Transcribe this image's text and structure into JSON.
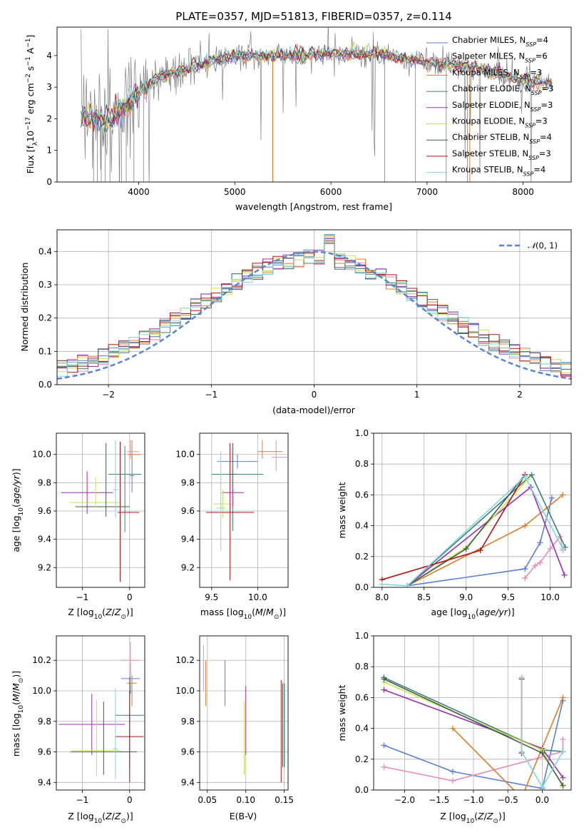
{
  "title": "PLATE=0357, MJD=51813, FIBERID=0357, z=0.114",
  "models": [
    {
      "name": "Chabrier MILES, N",
      "nssp": "4",
      "color": "#5b7fd6"
    },
    {
      "name": "Salpeter MILES, N",
      "nssp": "6",
      "color": "#e78cb8"
    },
    {
      "name": "Kroupa MILES, N",
      "nssp": "3",
      "color": "#e07b2a"
    },
    {
      "name": "Chabrier ELODIE, N",
      "nssp": "3",
      "color": "#3f7f78"
    },
    {
      "name": "Salpeter ELODIE, N",
      "nssp": "3",
      "color": "#9b2fb1"
    },
    {
      "name": "Kroupa ELODIE, N",
      "nssp": "3",
      "color": "#c6e34a"
    },
    {
      "name": "Chabrier STELIB, N",
      "nssp": "4",
      "color": "#3d5a55"
    },
    {
      "name": "Salpeter STELIB, N",
      "nssp": "3",
      "color": "#b01515"
    },
    {
      "name": "Kroupa STELIB, N",
      "nssp": "4",
      "color": "#7ed8e0"
    }
  ],
  "colors": {
    "data": "#808080",
    "gauss": "#5b84d0",
    "grid": "#b0b0b0"
  },
  "chart_data": [
    {
      "id": "spectrum",
      "type": "line",
      "xlabel": "wavelength [Angstrom, rest frame]",
      "ylabel": "Flux [f",
      "xlim": [
        3150,
        8500
      ],
      "ylim": [
        0,
        4.9
      ],
      "xticks": [
        4000,
        5000,
        6000,
        7000,
        8000
      ],
      "yticks": [
        0,
        1,
        2,
        3,
        4
      ],
      "legend": "top-right",
      "continuum_x": [
        3400,
        3500,
        3700,
        4000,
        4200,
        4500,
        4800,
        5000,
        5500,
        6000,
        6500,
        7000,
        7500,
        8000,
        8300
      ],
      "continuum_y": [
        2.1,
        2.1,
        1.9,
        2.8,
        3.3,
        3.6,
        3.85,
        4.0,
        4.0,
        4.05,
        4.05,
        3.8,
        3.6,
        3.2,
        3.1
      ]
    },
    {
      "id": "residuals",
      "type": "line",
      "xlabel": "(data-model)/error",
      "ylabel": "Normed distribution",
      "xlim": [
        -2.5,
        2.5
      ],
      "ylim": [
        0,
        0.465
      ],
      "xticks": [
        -2,
        -1,
        0,
        1,
        2
      ],
      "yticks": [
        0,
        0.1,
        0.2,
        0.3,
        0.4
      ],
      "grid": true,
      "legend": "top-right",
      "gauss_label": "(0, 1)",
      "gauss_sigma": 1.0
    },
    {
      "id": "age_vs_z",
      "type": "scatter",
      "xlabel": "Z [log",
      "ylabel": "age  [log",
      "xlim": [
        -1.55,
        0.32
      ],
      "ylim": [
        9.06,
        10.15
      ],
      "xticks": [
        -1,
        0
      ],
      "yticks": [
        9.2,
        9.4,
        9.6,
        9.8,
        10.0
      ],
      "grid": true,
      "points": [
        {
          "x": 0.05,
          "y": 9.85,
          "xerr": [
            0.05,
            0.05
          ],
          "yerr": [
            0.12,
            0.15
          ]
        },
        {
          "x": 0.02,
          "y": 10.02,
          "xerr": [
            0.08,
            0.18
          ],
          "yerr": [
            0.05,
            0.08
          ]
        },
        {
          "x": 0.05,
          "y": 10.0,
          "xerr": [
            0.1,
            0.18
          ],
          "yerr": [
            0.05,
            0.1
          ]
        },
        {
          "x": -0.1,
          "y": 9.86,
          "xerr": [
            0.35,
            0.35
          ],
          "yerr": [
            0.41,
            0.2
          ]
        },
        {
          "x": -0.9,
          "y": 9.73,
          "xerr": [
            0.55,
            0.55
          ],
          "yerr": [
            0.15,
            0.15
          ]
        },
        {
          "x": -0.72,
          "y": 9.66,
          "xerr": [
            0.55,
            0.55
          ],
          "yerr": [
            0.02,
            0.18
          ]
        },
        {
          "x": -0.5,
          "y": 9.63,
          "xerr": [
            0.65,
            0.5
          ],
          "yerr": [
            0.07,
            0.45
          ]
        },
        {
          "x": -0.2,
          "y": 9.59,
          "xerr": [
            0.05,
            0.4
          ],
          "yerr": [
            0.49,
            0.5
          ]
        },
        {
          "x": -0.3,
          "y": 9.75,
          "xerr": [
            0.05,
            0.05
          ],
          "yerr": [
            0.2,
            0.35
          ]
        }
      ]
    },
    {
      "id": "age_vs_mass",
      "type": "scatter",
      "xlabel": "mass [log",
      "ylabel": "",
      "xlim": [
        9.37,
        10.33
      ],
      "ylim": [
        9.06,
        10.15
      ],
      "xticks": [
        9.5,
        10.0
      ],
      "yticks": [
        9.2,
        9.4,
        9.6,
        9.8,
        10.0
      ],
      "grid": true,
      "points": [
        {
          "x": 9.78,
          "y": 9.95,
          "xerr": [
            0.22,
            0.22
          ],
          "yerr": [
            0.05,
            0.05
          ]
        },
        {
          "x": 10.2,
          "y": 9.98,
          "xerr": [
            0.05,
            0.12
          ],
          "yerr": [
            0.1,
            0.12
          ]
        },
        {
          "x": 10.05,
          "y": 10.02,
          "xerr": [
            0.05,
            0.22
          ],
          "yerr": [
            0.05,
            0.08
          ]
        },
        {
          "x": 9.73,
          "y": 9.86,
          "xerr": [
            0.23,
            0.33
          ],
          "yerr": [
            0.4,
            0.22
          ]
        },
        {
          "x": 9.73,
          "y": 9.73,
          "xerr": [
            0.12,
            0.12
          ],
          "yerr": [
            0.1,
            0.1
          ]
        },
        {
          "x": 9.62,
          "y": 9.65,
          "xerr": [
            0.1,
            0.1
          ],
          "yerr": [
            0.1,
            0.1
          ]
        },
        {
          "x": 9.73,
          "y": 9.86,
          "xerr": [
            0.03,
            0.03
          ],
          "yerr": [
            0.1,
            0.22
          ]
        },
        {
          "x": 9.7,
          "y": 9.59,
          "xerr": [
            0.26,
            0.26
          ],
          "yerr": [
            0.48,
            0.49
          ]
        },
        {
          "x": 9.6,
          "y": 9.62,
          "xerr": [
            0.05,
            0.05
          ],
          "yerr": [
            0.3,
            0.4
          ]
        }
      ]
    },
    {
      "id": "weight_vs_age",
      "type": "line",
      "xlabel": "age  [log",
      "ylabel": "mass weight",
      "xlim": [
        7.9,
        10.25
      ],
      "ylim": [
        0,
        1.0
      ],
      "xticks": [
        8.0,
        8.5,
        9.0,
        9.5,
        10.0
      ],
      "yticks": [
        0.0,
        0.2,
        0.4,
        0.6,
        0.8,
        1.0
      ],
      "grid": true,
      "series": [
        {
          "x": [
            8.3,
            9.7,
            9.88,
            10.02
          ],
          "y": [
            0.01,
            0.12,
            0.29,
            0.58
          ]
        },
        {
          "x": [
            9.7,
            9.82,
            9.88,
            10.0,
            10.12,
            10.15
          ],
          "y": [
            0.06,
            0.14,
            0.16,
            0.25,
            0.33,
            0.24
          ]
        },
        {
          "x": [
            8.3,
            9.7,
            10.15
          ],
          "y": [
            0.01,
            0.4,
            0.6
          ]
        },
        {
          "x": [
            8.3,
            9.78,
            10.18
          ],
          "y": [
            0.01,
            0.73,
            0.26
          ]
        },
        {
          "x": [
            8.3,
            9.77,
            10.17
          ],
          "y": [
            0.01,
            0.65,
            0.08
          ]
        },
        {
          "x": [
            8.3,
            9.0,
            9.73
          ],
          "y": [
            0.01,
            0.26,
            0.7
          ]
        },
        {
          "x": [
            8.3,
            9.0,
            9.7
          ],
          "y": [
            0.01,
            0.25,
            0.73
          ]
        },
        {
          "x": [
            8.0,
            9.17,
            9.7
          ],
          "y": [
            0.05,
            0.24,
            0.73
          ]
        },
        {
          "x": [
            8.0,
            8.3,
            9.7,
            10.15
          ],
          "y": [
            0.02,
            0.01,
            0.72,
            0.25
          ]
        }
      ]
    },
    {
      "id": "mass_vs_z",
      "type": "scatter",
      "xlabel": "Z [log",
      "ylabel": "mass [log",
      "xlim": [
        -1.55,
        0.32
      ],
      "ylim": [
        9.35,
        10.36
      ],
      "xticks": [
        -1,
        0
      ],
      "yticks": [
        9.4,
        9.6,
        9.8,
        10.0,
        10.2
      ],
      "grid": true,
      "points": [
        {
          "x": 0.02,
          "y": 10.08,
          "xerr": [
            0.2,
            0.2
          ],
          "yerr": [
            0.1,
            0.1
          ]
        },
        {
          "x": 0.02,
          "y": 10.2,
          "xerr": [
            0.2,
            0.2
          ],
          "yerr": [
            0.15,
            0.12
          ]
        },
        {
          "x": 0.05,
          "y": 10.05,
          "xerr": [
            0.1,
            0.1
          ],
          "yerr": [
            0.15,
            0.05
          ]
        },
        {
          "x": 0.0,
          "y": 9.84,
          "xerr": [
            0.3,
            0.3
          ],
          "yerr": [
            0.35,
            0.25
          ]
        },
        {
          "x": -0.8,
          "y": 9.78,
          "xerr": [
            0.7,
            0.7
          ],
          "yerr": [
            0.2,
            0.2
          ]
        },
        {
          "x": -0.7,
          "y": 9.61,
          "xerr": [
            0.5,
            0.5
          ],
          "yerr": [
            0.17,
            0.33
          ]
        },
        {
          "x": -0.55,
          "y": 9.6,
          "xerr": [
            0.7,
            0.7
          ],
          "yerr": [
            0.15,
            0.33
          ]
        },
        {
          "x": 0.0,
          "y": 9.7,
          "xerr": [
            0.3,
            0.3
          ],
          "yerr": [
            0.3,
            0.3
          ]
        },
        {
          "x": -0.3,
          "y": 9.62,
          "xerr": [
            0.05,
            0.05
          ],
          "yerr": [
            0.2,
            0.4
          ]
        }
      ]
    },
    {
      "id": "mass_vs_ebv",
      "type": "scatter",
      "xlabel": "E(B-V)",
      "ylabel": "",
      "xlim": [
        0.04,
        0.155
      ],
      "ylim": [
        9.35,
        10.36
      ],
      "xticks": [
        0.05,
        0.1,
        0.15
      ],
      "yticks": [
        9.4,
        9.6,
        9.8,
        10.0,
        10.2
      ],
      "grid": true,
      "points": [
        {
          "x": 0.073,
          "y": 10.05,
          "xerr": [
            0,
            0
          ],
          "yerr": [
            0.15,
            0.15
          ]
        },
        {
          "x": 0.045,
          "y": 10.15,
          "xerr": [
            0,
            0
          ],
          "yerr": [
            0.15,
            0.15
          ]
        },
        {
          "x": 0.048,
          "y": 10.05,
          "xerr": [
            0,
            0
          ],
          "yerr": [
            0.15,
            0.15
          ]
        },
        {
          "x": 0.15,
          "y": 9.8,
          "xerr": [
            0,
            0
          ],
          "yerr": [
            0.3,
            0.25
          ]
        },
        {
          "x": 0.1,
          "y": 9.78,
          "xerr": [
            0,
            0
          ],
          "yerr": [
            0.2,
            0.25
          ]
        },
        {
          "x": 0.098,
          "y": 9.6,
          "xerr": [
            0,
            0
          ],
          "yerr": [
            0.15,
            0.33
          ]
        },
        {
          "x": 0.148,
          "y": 9.75,
          "xerr": [
            0,
            0
          ],
          "yerr": [
            0.25,
            0.3
          ]
        },
        {
          "x": 0.146,
          "y": 9.7,
          "xerr": [
            0,
            0
          ],
          "yerr": [
            0.3,
            0.37
          ]
        },
        {
          "x": 0.151,
          "y": 9.85,
          "xerr": [
            0,
            0
          ],
          "yerr": [
            0.35,
            0.2
          ]
        }
      ]
    },
    {
      "id": "weight_vs_z",
      "type": "line",
      "xlabel": "Z [log",
      "ylabel": "mass weight",
      "xlim": [
        -2.45,
        0.42
      ],
      "ylim": [
        0,
        1.0
      ],
      "xticks": [
        -2.0,
        -1.5,
        -1.0,
        -0.5,
        0.0
      ],
      "yticks": [
        0.0,
        0.2,
        0.4,
        0.6,
        0.8,
        1.0
      ],
      "grid": true,
      "series": [
        {
          "x": [
            -2.3,
            -1.3,
            0.0,
            0.3
          ],
          "y": [
            0.29,
            0.12,
            0.01,
            0.58
          ]
        },
        {
          "x": [
            -2.3,
            -1.3,
            0.3,
            0.3
          ],
          "y": [
            0.15,
            0.06,
            0.25,
            0.33
          ]
        },
        {
          "x": [
            -1.3,
            -0.3,
            0.3
          ],
          "y": [
            0.4,
            -0.05,
            0.6
          ]
        },
        {
          "x": [
            -2.3,
            0.0,
            0.3
          ],
          "y": [
            0.73,
            0.26,
            0.25
          ]
        },
        {
          "x": [
            -2.3,
            0.0,
            0.3
          ],
          "y": [
            0.65,
            0.27,
            0.08
          ]
        },
        {
          "x": [
            -2.3,
            0.0,
            0.3
          ],
          "y": [
            0.7,
            0.26,
            0.02
          ]
        },
        {
          "x": [
            -2.3,
            0.0,
            0.3
          ],
          "y": [
            0.72,
            0.24,
            0.03
          ]
        },
        {
          "x": [
            -0.3,
            -0.3
          ],
          "y": [
            0.72,
            0.24
          ]
        },
        {
          "x": [
            -0.3,
            -0.3,
            0.0,
            0.3
          ],
          "y": [
            0.73,
            0.25,
            0.02,
            0.25
          ]
        }
      ]
    }
  ]
}
